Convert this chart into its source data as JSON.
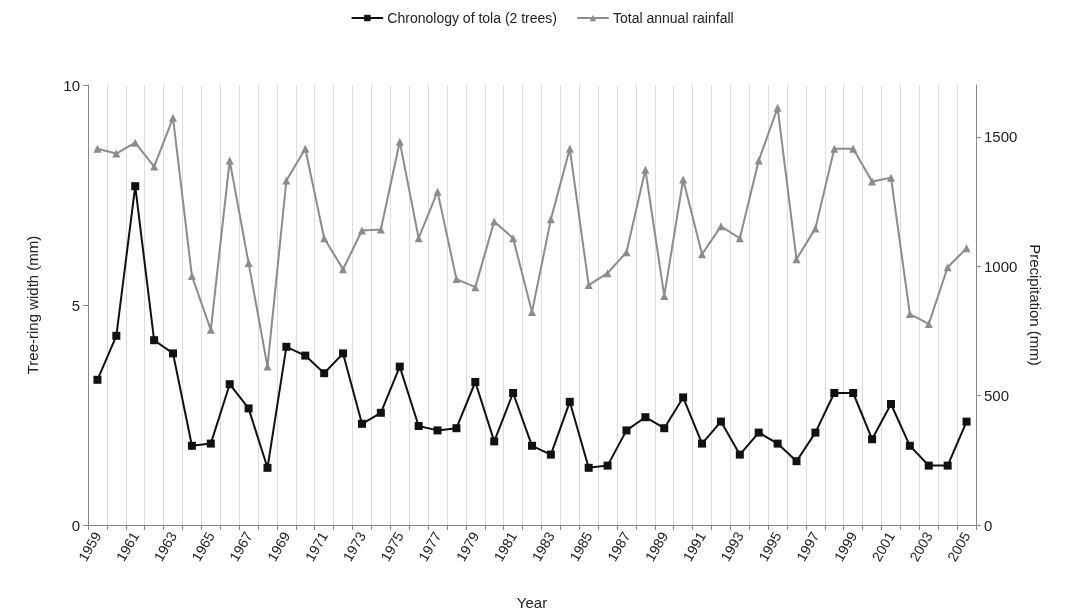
{
  "chart_data": {
    "type": "line",
    "xlabel": "Year",
    "ylabel": "Tree-ring width (mm)",
    "y2label": "Precipitation (mm)",
    "categories": [
      "1959",
      null,
      "1961",
      null,
      "1963",
      null,
      "1965",
      null,
      "1967",
      null,
      "1969",
      null,
      "1971",
      null,
      "1973",
      null,
      "1975",
      null,
      "1977",
      null,
      "1979",
      null,
      "1981",
      null,
      "1983",
      null,
      "1985",
      null,
      "1987",
      null,
      "1989",
      null,
      "1991",
      null,
      "1993",
      null,
      "1995",
      null,
      "1997",
      null,
      "1999",
      null,
      "2001",
      null,
      "2003",
      null,
      "2005"
    ],
    "series": [
      {
        "name": "Chronology of tola (2 trees)",
        "color": "#111111",
        "marker": "square",
        "values": [
          3.3,
          4.3,
          7.7,
          4.2,
          3.9,
          1.8,
          1.85,
          3.2,
          2.65,
          1.3,
          4.05,
          3.85,
          3.45,
          3.9,
          2.3,
          2.55,
          3.6,
          2.25,
          2.15,
          2.2,
          3.25,
          1.9,
          3.0,
          1.8,
          1.6,
          2.8,
          1.3,
          1.35,
          2.15,
          2.45,
          2.2,
          2.9,
          1.85,
          2.35,
          1.6,
          2.1,
          1.85,
          1.45,
          2.1,
          3.0,
          3.0,
          1.95,
          2.75,
          1.8,
          1.35,
          1.35,
          2.35
        ]
      },
      {
        "name": "Total annual rainfall",
        "color": "#8c8c8c",
        "marker": "triangle",
        "axis": "y2",
        "values": [
          1454,
          1435,
          1477,
          1385,
          1573,
          962,
          754,
          1408,
          1012,
          612,
          1331,
          1454,
          1108,
          988,
          1138,
          1142,
          1481,
          1108,
          1288,
          950,
          919,
          1173,
          1108,
          823,
          1181,
          1454,
          927,
          973,
          1054,
          1373,
          885,
          1335,
          1046,
          1154,
          1108,
          1408,
          1612,
          1027,
          1146,
          1454,
          1454,
          1327,
          1342,
          815,
          777,
          996,
          1069
        ]
      }
    ],
    "ylim": [
      0,
      10
    ],
    "yticks": [
      0,
      5,
      10
    ],
    "y2lim": [
      0,
      1700
    ],
    "y2ticks": [
      0,
      500,
      1000,
      1500
    ],
    "grid": "x",
    "legend": "top",
    "line_style": "solid"
  }
}
